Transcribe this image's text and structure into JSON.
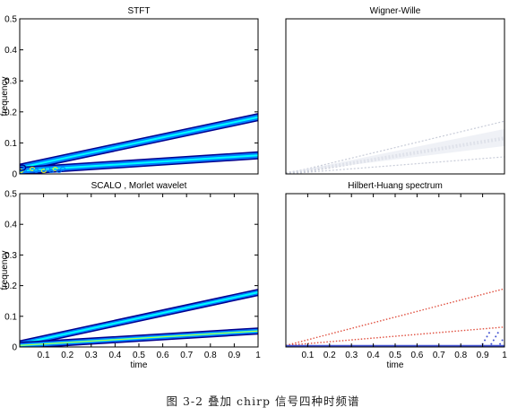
{
  "figure_caption": "图 3-2 叠加 chirp 信号四种时频谱",
  "colors": {
    "jet_dark": "#00008f",
    "jet_blue": "#0080ff",
    "jet_cyan": "#00ffff",
    "jet_yellow": "#ffff00",
    "jet_red": "#ff0000",
    "wigner_gray": "#c8ccd8",
    "hht_red": "#e05040",
    "hht_blue": "#4050d0"
  },
  "chart_data": [
    {
      "type": "heatmap",
      "title": "STFT",
      "ylabel": "frequency",
      "xlabel": "",
      "xlim": [
        0,
        1
      ],
      "ylim": [
        0,
        0.5
      ],
      "yticks": [
        "0",
        "0.1",
        "0.2",
        "0.3",
        "0.4",
        "0.5"
      ],
      "xticks": [],
      "colormap": "jet",
      "ridges": [
        {
          "x": [
            0.0,
            1.0
          ],
          "y": [
            0.02,
            0.183
          ]
        },
        {
          "x": [
            0.0,
            1.0
          ],
          "y": [
            0.01,
            0.06
          ]
        }
      ]
    },
    {
      "type": "heatmap",
      "title": "Wigner-Wille",
      "ylabel": "",
      "xlabel": "",
      "xlim": [
        0,
        1
      ],
      "ylim": [
        0,
        0.5
      ],
      "yticks": [],
      "xticks": [],
      "colormap": "gray",
      "ridges": [
        {
          "x": [
            0.0,
            1.0
          ],
          "y": [
            0.0,
            0.17
          ]
        },
        {
          "x": [
            0.0,
            1.0
          ],
          "y": [
            0.0,
            0.115
          ]
        },
        {
          "x": [
            0.0,
            1.0
          ],
          "y": [
            0.0,
            0.055
          ]
        }
      ]
    },
    {
      "type": "heatmap",
      "title": "SCALO , Morlet wavelet",
      "ylabel": "frequency",
      "xlabel": "time",
      "xlim": [
        0,
        1
      ],
      "ylim": [
        0,
        0.5
      ],
      "yticks": [
        "0",
        "0.1",
        "0.2",
        "0.3",
        "0.4",
        "0.5"
      ],
      "xticks": [
        "0.1",
        "0.2",
        "0.3",
        "0.4",
        "0.5",
        "0.6",
        "0.7",
        "0.8",
        "0.9",
        "1"
      ],
      "colormap": "jet",
      "ridges": [
        {
          "x": [
            0.0,
            1.0
          ],
          "y": [
            0.01,
            0.178
          ]
        },
        {
          "x": [
            0.0,
            1.0
          ],
          "y": [
            0.005,
            0.052
          ]
        }
      ]
    },
    {
      "type": "heatmap",
      "title": "Hilbert-Huang spectrum",
      "ylabel": "",
      "xlabel": "time",
      "xlim": [
        0,
        1
      ],
      "ylim": [
        0,
        0.5
      ],
      "yticks": [],
      "xticks": [
        "0.1",
        "0.2",
        "0.3",
        "0.4",
        "0.5",
        "0.6",
        "0.7",
        "0.8",
        "0.9",
        "1"
      ],
      "colormap": "jet",
      "ridges": [
        {
          "x": [
            0.0,
            1.0
          ],
          "y": [
            0.005,
            0.19
          ]
        },
        {
          "x": [
            0.0,
            1.0
          ],
          "y": [
            0.005,
            0.065
          ]
        }
      ]
    }
  ]
}
